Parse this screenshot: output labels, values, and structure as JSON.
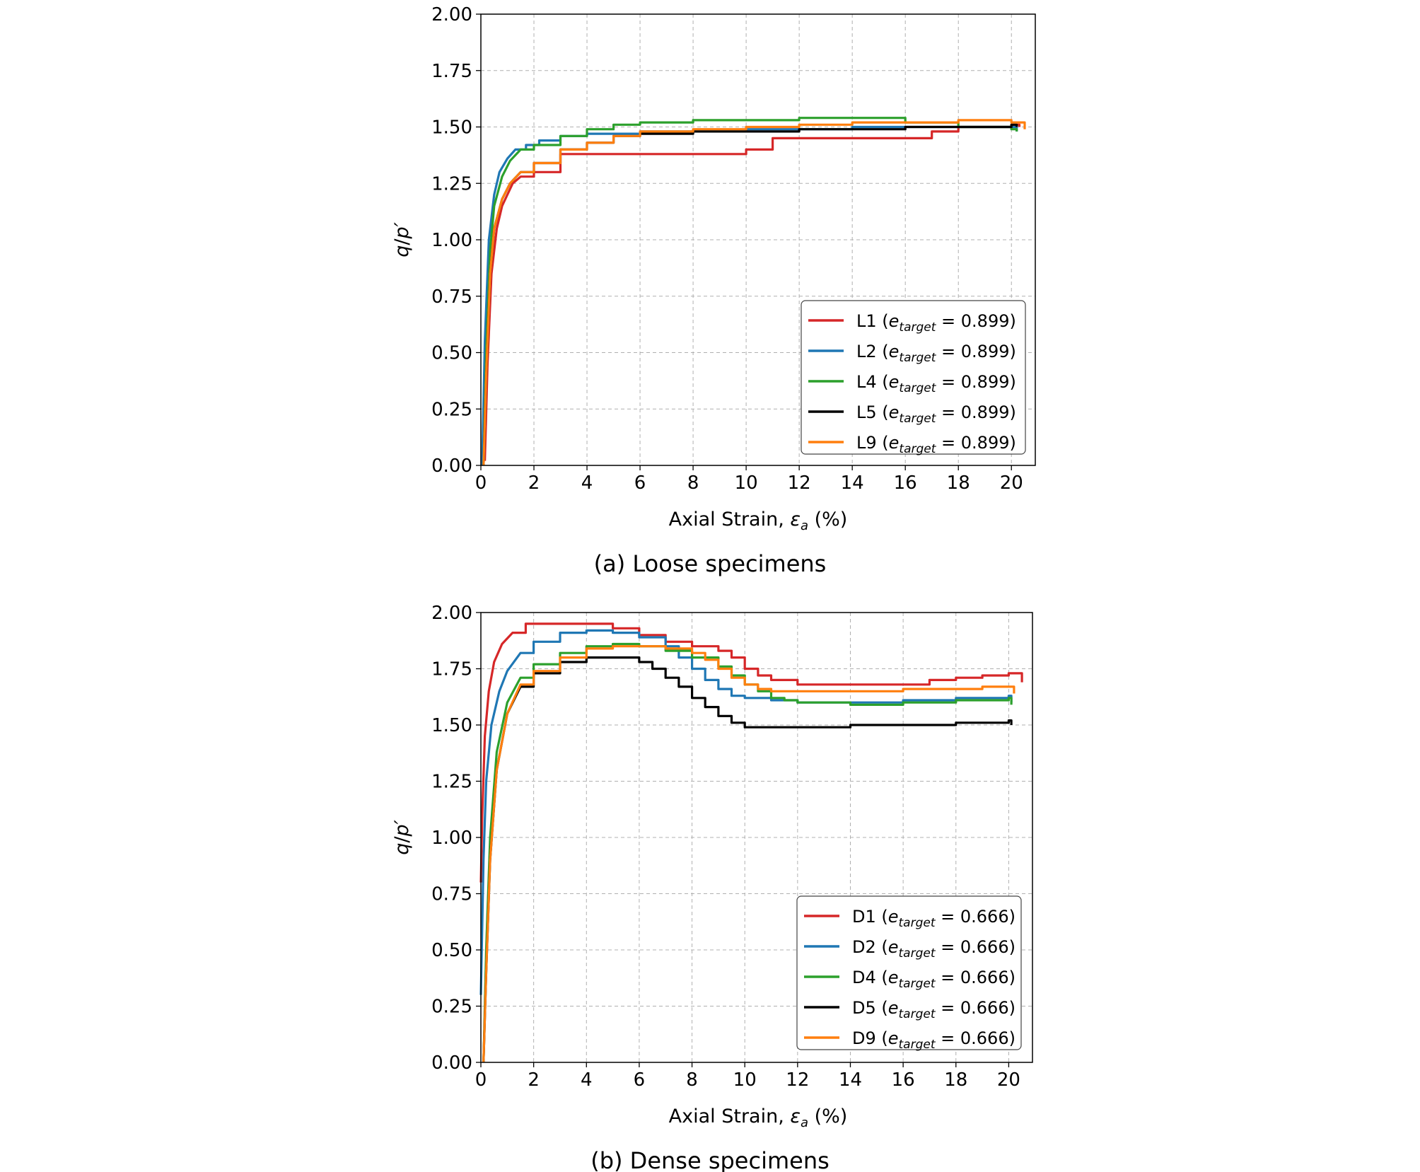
{
  "chart_data": [
    {
      "type": "line",
      "caption": "(a) Loose specimens",
      "xlabel_prefix": "Axial Strain, ",
      "xlabel_symbol": "ε",
      "xlabel_sub": "a",
      "xlabel_suffix": " (%)",
      "ylabel_q": "q",
      "ylabel_sep": "/",
      "ylabel_p": "p′",
      "xlim": [
        0,
        20.9
      ],
      "ylim": [
        0,
        2.0
      ],
      "xticks": [
        0,
        2,
        4,
        6,
        8,
        10,
        12,
        14,
        16,
        18,
        20
      ],
      "yticks": [
        "0.00",
        "0.25",
        "0.50",
        "0.75",
        "1.00",
        "1.25",
        "1.50",
        "1.75",
        "2.00"
      ],
      "grid": true,
      "legend_position": "lower-right",
      "series": [
        {
          "name": "L1",
          "legend_prefix": "L1 (",
          "legend_e": "e",
          "legend_sub": "target",
          "legend_suffix": " = 0.899)",
          "color": "#d62728",
          "x": [
            0.15,
            0.25,
            0.4,
            0.6,
            0.8,
            1.0,
            1.2,
            1.5,
            2.0,
            3.0,
            4.0,
            6.0,
            8.0,
            9.5,
            10.0,
            11.0,
            12.0,
            14.0,
            16.0,
            17.0,
            18.0,
            19.0,
            20.0,
            20.3
          ],
          "y": [
            0.02,
            0.45,
            0.85,
            1.05,
            1.15,
            1.2,
            1.25,
            1.28,
            1.3,
            1.38,
            1.38,
            1.38,
            1.38,
            1.38,
            1.4,
            1.45,
            1.45,
            1.45,
            1.45,
            1.48,
            1.5,
            1.5,
            1.51,
            1.5
          ]
        },
        {
          "name": "L2",
          "legend_prefix": "L2 (",
          "legend_e": "e",
          "legend_sub": "target",
          "legend_suffix": " = 0.899)",
          "color": "#1f77b4",
          "x": [
            0.05,
            0.15,
            0.3,
            0.5,
            0.7,
            1.0,
            1.3,
            1.7,
            2.2,
            3.0,
            4.0,
            6.0,
            8.0,
            10.0,
            12.0,
            14.0,
            16.0,
            18.0,
            20.0,
            20.2
          ],
          "y": [
            0.0,
            0.55,
            1.0,
            1.2,
            1.3,
            1.36,
            1.4,
            1.42,
            1.44,
            1.46,
            1.47,
            1.48,
            1.48,
            1.49,
            1.49,
            1.5,
            1.5,
            1.5,
            1.5,
            1.48
          ]
        },
        {
          "name": "L4",
          "legend_prefix": "L4 (",
          "legend_e": "e",
          "legend_sub": "target",
          "legend_suffix": " = 0.899)",
          "color": "#2ca02c",
          "x": [
            0.1,
            0.2,
            0.35,
            0.5,
            0.8,
            1.1,
            1.5,
            2.0,
            3.0,
            4.0,
            5.0,
            6.0,
            8.0,
            10.0,
            12.0,
            14.0,
            16.0,
            18.0,
            19.0,
            20.0,
            20.2
          ],
          "y": [
            0.0,
            0.5,
            0.95,
            1.15,
            1.28,
            1.35,
            1.4,
            1.42,
            1.46,
            1.49,
            1.51,
            1.52,
            1.53,
            1.53,
            1.54,
            1.54,
            1.52,
            1.5,
            1.5,
            1.49,
            1.48
          ]
        },
        {
          "name": "L5",
          "legend_prefix": "L5 (",
          "legend_e": "e",
          "legend_sub": "target",
          "legend_suffix": " = 0.899)",
          "color": "#000000",
          "x": [
            0.1,
            0.2,
            0.35,
            0.5,
            0.8,
            1.1,
            1.5,
            2.0,
            3.0,
            4.0,
            5.0,
            6.0,
            8.0,
            10.0,
            12.0,
            14.0,
            16.0,
            18.0,
            19.0,
            20.0,
            20.2
          ],
          "y": [
            0.0,
            0.4,
            0.85,
            1.05,
            1.18,
            1.25,
            1.3,
            1.34,
            1.4,
            1.43,
            1.46,
            1.47,
            1.48,
            1.48,
            1.49,
            1.49,
            1.5,
            1.5,
            1.5,
            1.51,
            1.5
          ]
        },
        {
          "name": "L9",
          "legend_prefix": "L9 (",
          "legend_e": "e",
          "legend_sub": "target",
          "legend_suffix": " = 0.899)",
          "color": "#ff7f0e",
          "x": [
            0.1,
            0.2,
            0.35,
            0.5,
            0.8,
            1.1,
            1.5,
            2.0,
            3.0,
            4.0,
            5.0,
            6.0,
            8.0,
            10.0,
            12.0,
            14.0,
            16.0,
            18.0,
            19.0,
            20.0,
            20.5
          ],
          "y": [
            0.0,
            0.4,
            0.85,
            1.05,
            1.18,
            1.25,
            1.3,
            1.34,
            1.4,
            1.43,
            1.46,
            1.48,
            1.49,
            1.5,
            1.51,
            1.52,
            1.52,
            1.53,
            1.53,
            1.52,
            1.49
          ]
        }
      ]
    },
    {
      "type": "line",
      "caption": "(b) Dense specimens",
      "xlabel_prefix": "Axial Strain, ",
      "xlabel_symbol": "ε",
      "xlabel_sub": "a",
      "xlabel_suffix": " (%)",
      "ylabel_q": "q",
      "ylabel_sep": "/",
      "ylabel_p": "p′",
      "xlim": [
        0,
        20.9
      ],
      "ylim": [
        0,
        2.0
      ],
      "xticks": [
        0,
        2,
        4,
        6,
        8,
        10,
        12,
        14,
        16,
        18,
        20
      ],
      "yticks": [
        "0.00",
        "0.25",
        "0.50",
        "0.75",
        "1.00",
        "1.25",
        "1.50",
        "1.75",
        "2.00"
      ],
      "grid": true,
      "legend_position": "lower-right",
      "series": [
        {
          "name": "D1",
          "legend_prefix": "D1 (",
          "legend_e": "e",
          "legend_sub": "target",
          "legend_suffix": " = 0.666)",
          "color": "#d62728",
          "x": [
            0.0,
            0.05,
            0.15,
            0.3,
            0.5,
            0.8,
            1.2,
            1.7,
            2.5,
            4.0,
            5.0,
            6.0,
            7.0,
            8.0,
            9.0,
            9.5,
            10.0,
            10.5,
            11.0,
            12.0,
            14.0,
            16.0,
            17.0,
            18.0,
            19.0,
            20.0,
            20.5
          ],
          "y": [
            0.8,
            1.1,
            1.45,
            1.65,
            1.78,
            1.86,
            1.91,
            1.95,
            1.95,
            1.95,
            1.93,
            1.9,
            1.87,
            1.85,
            1.83,
            1.8,
            1.75,
            1.72,
            1.7,
            1.68,
            1.68,
            1.68,
            1.7,
            1.71,
            1.72,
            1.73,
            1.69
          ]
        },
        {
          "name": "D2",
          "legend_prefix": "D2 (",
          "legend_e": "e",
          "legend_sub": "target",
          "legend_suffix": " = 0.666)",
          "color": "#1f77b4",
          "x": [
            0.0,
            0.1,
            0.2,
            0.4,
            0.7,
            1.0,
            1.5,
            2.0,
            3.0,
            4.0,
            5.0,
            6.0,
            7.0,
            7.5,
            8.0,
            8.5,
            9.0,
            9.5,
            10.0,
            11.0,
            12.0,
            14.0,
            16.0,
            18.0,
            20.0,
            20.1
          ],
          "y": [
            0.3,
            0.9,
            1.25,
            1.5,
            1.65,
            1.74,
            1.82,
            1.87,
            1.91,
            1.92,
            1.91,
            1.89,
            1.85,
            1.8,
            1.75,
            1.7,
            1.66,
            1.63,
            1.62,
            1.61,
            1.6,
            1.6,
            1.61,
            1.62,
            1.63,
            1.6
          ]
        },
        {
          "name": "D4",
          "legend_prefix": "D4 (",
          "legend_e": "e",
          "legend_sub": "target",
          "legend_suffix": " = 0.666)",
          "color": "#2ca02c",
          "x": [
            0.1,
            0.2,
            0.35,
            0.6,
            1.0,
            1.5,
            2.0,
            3.0,
            4.0,
            5.0,
            6.0,
            7.0,
            8.0,
            9.0,
            9.5,
            10.0,
            10.5,
            11.0,
            11.5,
            12.0,
            14.0,
            16.0,
            18.0,
            20.0,
            20.1
          ],
          "y": [
            0.0,
            0.5,
            1.0,
            1.38,
            1.6,
            1.71,
            1.77,
            1.82,
            1.85,
            1.86,
            1.85,
            1.83,
            1.8,
            1.76,
            1.72,
            1.68,
            1.65,
            1.62,
            1.61,
            1.6,
            1.59,
            1.6,
            1.61,
            1.62,
            1.59
          ]
        },
        {
          "name": "D5",
          "legend_prefix": "D5 (",
          "legend_e": "e",
          "legend_sub": "target",
          "legend_suffix": " = 0.666)",
          "color": "#000000",
          "x": [
            0.1,
            0.2,
            0.35,
            0.6,
            1.0,
            1.5,
            2.0,
            3.0,
            4.0,
            5.0,
            6.0,
            6.5,
            7.0,
            7.5,
            8.0,
            8.5,
            9.0,
            9.5,
            10.0,
            11.0,
            12.0,
            14.0,
            16.0,
            18.0,
            20.0,
            20.1
          ],
          "y": [
            0.0,
            0.4,
            0.9,
            1.3,
            1.55,
            1.67,
            1.73,
            1.78,
            1.8,
            1.8,
            1.78,
            1.75,
            1.71,
            1.67,
            1.62,
            1.58,
            1.54,
            1.51,
            1.49,
            1.49,
            1.49,
            1.5,
            1.5,
            1.51,
            1.52,
            1.5
          ]
        },
        {
          "name": "D9",
          "legend_prefix": "D9 (",
          "legend_e": "e",
          "legend_sub": "target",
          "legend_suffix": " = 0.666)",
          "color": "#ff7f0e",
          "x": [
            0.1,
            0.2,
            0.35,
            0.6,
            1.0,
            1.5,
            2.0,
            3.0,
            4.0,
            5.0,
            6.0,
            7.0,
            8.0,
            8.5,
            9.0,
            9.5,
            10.0,
            10.5,
            11.0,
            12.0,
            14.0,
            16.0,
            18.0,
            19.0,
            20.0,
            20.2
          ],
          "y": [
            0.0,
            0.4,
            0.9,
            1.3,
            1.55,
            1.68,
            1.74,
            1.8,
            1.84,
            1.85,
            1.85,
            1.84,
            1.82,
            1.79,
            1.75,
            1.71,
            1.68,
            1.66,
            1.65,
            1.65,
            1.65,
            1.66,
            1.66,
            1.67,
            1.67,
            1.64
          ]
        }
      ]
    }
  ]
}
